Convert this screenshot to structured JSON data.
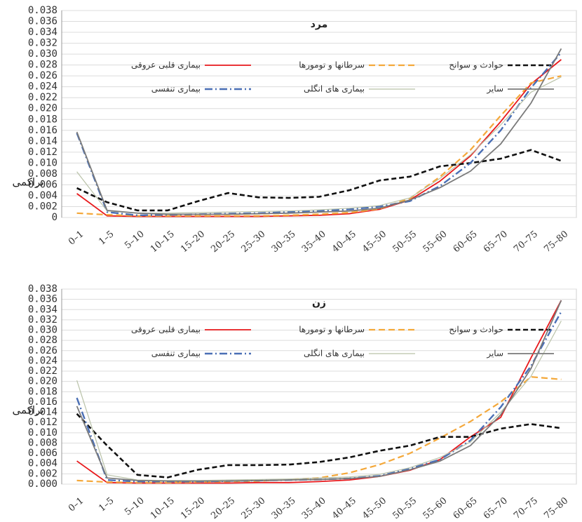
{
  "chart_data": [
    {
      "type": "line",
      "title": "مرد",
      "y_label": "تراکمی",
      "categories": [
        "0–1",
        "1–5",
        "5–10",
        "10–15",
        "15–20",
        "20–25",
        "25–30",
        "30–35",
        "35–40",
        "40–45",
        "45–50",
        "50–55",
        "55–60",
        "60–65",
        "65–70",
        "70–75",
        "75–80"
      ],
      "ylim": [
        0,
        0.038
      ],
      "yticks": [
        0,
        0.002,
        0.004,
        0.006,
        0.008,
        {
          "value": 0.01,
          "label": "0.010"
        },
        0.012,
        0.014,
        0.016,
        0.018,
        {
          "value": 0.02,
          "label": "0.020"
        },
        0.022,
        0.024,
        0.026,
        0.028,
        {
          "value": 0.03,
          "label": "0.030"
        },
        0.032,
        0.034,
        0.036,
        0.038
      ],
      "grid": true,
      "series": [
        {
          "name": "بیماری قلبی عروقی",
          "color": "#e8191c",
          "style": "solid",
          "values": [
            0.0044,
            0.0003,
            0.0002,
            0.0002,
            0.0002,
            0.0002,
            0.0002,
            0.0003,
            0.0004,
            0.0007,
            0.0015,
            0.0032,
            0.0067,
            0.0113,
            0.0176,
            0.0245,
            0.029
          ]
        },
        {
          "name": "سرطانها و تومورها",
          "color": "#f4a83a",
          "style": "dash",
          "values": [
            0.0008,
            0.0005,
            0.0003,
            0.0003,
            0.0003,
            0.0003,
            0.0003,
            0.0004,
            0.0006,
            0.0009,
            0.0016,
            0.0035,
            0.0075,
            0.0124,
            0.0187,
            0.0247,
            0.026
          ]
        },
        {
          "name": "حوادث و سوانح",
          "color": "#111111",
          "style": "bigdash",
          "values": [
            0.0054,
            0.0028,
            0.0013,
            0.0013,
            0.003,
            0.0045,
            0.0037,
            0.0036,
            0.0038,
            0.005,
            0.0068,
            0.0075,
            0.0094,
            0.01,
            0.0108,
            0.0124,
            0.0104
          ]
        },
        {
          "name": "بیماری تنفسی",
          "color": "#4a6fb5",
          "style": "dashdot",
          "values": [
            0.0155,
            0.001,
            0.0004,
            0.0005,
            0.0006,
            0.0007,
            0.0008,
            0.001,
            0.0012,
            0.0015,
            0.002,
            0.003,
            0.0058,
            0.01,
            0.016,
            0.0238,
            0.0303
          ]
        },
        {
          "name": "بیماری های انگلی",
          "color": "#b9c2a8",
          "style": "thin",
          "values": [
            0.0084,
            0.0012,
            0.0008,
            0.0008,
            0.0009,
            0.001,
            0.0011,
            0.0012,
            0.0014,
            0.0017,
            0.0022,
            0.0036,
            0.0072,
            0.0115,
            0.017,
            0.023,
            0.0258
          ]
        },
        {
          "name": "سایر",
          "color": "#7a7a7a",
          "style": "solid",
          "values": [
            0.0157,
            0.0013,
            0.0008,
            0.0006,
            0.0006,
            0.0006,
            0.0007,
            0.0008,
            0.001,
            0.0012,
            0.0017,
            0.0032,
            0.0055,
            0.0085,
            0.0135,
            0.021,
            0.031
          ]
        }
      ]
    },
    {
      "type": "line",
      "title": "زن",
      "y_label": "تراکمی",
      "categories": [
        "0–1",
        "1–5",
        "5–10",
        "10–15",
        "15–20",
        "20–25",
        "25–30",
        "30–35",
        "35–40",
        "40–45",
        "45–50",
        "50–55",
        "55–60",
        "60–65",
        "65–70",
        "70–75",
        "75–80"
      ],
      "ylim": [
        0,
        0.038
      ],
      "yticks": [
        {
          "value": 0,
          "label": "0.000"
        },
        0.002,
        0.004,
        0.006,
        0.008,
        {
          "value": 0.01,
          "label": "0.010"
        },
        0.012,
        0.014,
        0.016,
        0.018,
        {
          "value": 0.02,
          "label": "0.020"
        },
        0.022,
        0.024,
        0.026,
        0.028,
        {
          "value": 0.03,
          "label": "0.030"
        },
        0.032,
        0.034,
        0.036,
        0.038
      ],
      "grid": true,
      "series": [
        {
          "name": "بیماری قلبی عروقی",
          "color": "#e8191c",
          "style": "solid",
          "values": [
            0.0045,
            0.0003,
            0.0002,
            0.0002,
            0.0002,
            0.0002,
            0.0003,
            0.0003,
            0.0005,
            0.0008,
            0.0015,
            0.0027,
            0.0048,
            0.0092,
            0.013,
            0.0246,
            0.0358
          ]
        },
        {
          "name": "سرطانها و تومورها",
          "color": "#f4a83a",
          "style": "dash",
          "values": [
            0.0007,
            0.0004,
            0.0003,
            0.0003,
            0.0004,
            0.0005,
            0.0006,
            0.0009,
            0.0012,
            0.0022,
            0.0038,
            0.006,
            0.009,
            0.0122,
            0.016,
            0.0209,
            0.0204
          ]
        },
        {
          "name": "حوادث و سوانح",
          "color": "#111111",
          "style": "bigdash",
          "values": [
            0.0137,
            0.0075,
            0.0018,
            0.0013,
            0.0028,
            0.0037,
            0.0037,
            0.0038,
            0.0043,
            0.0052,
            0.0065,
            0.0075,
            0.0092,
            0.0092,
            0.0108,
            0.0117,
            0.0109
          ]
        },
        {
          "name": "بیماری تنفسی",
          "color": "#4a6fb5",
          "style": "dashdot",
          "values": [
            0.0168,
            0.0008,
            0.0005,
            0.0005,
            0.0005,
            0.0006,
            0.0007,
            0.0008,
            0.0009,
            0.0011,
            0.0016,
            0.003,
            0.0048,
            0.0085,
            0.015,
            0.023,
            0.0336
          ]
        },
        {
          "name": "بیماری های انگلی",
          "color": "#b9c2a8",
          "style": "thin",
          "values": [
            0.0202,
            0.0018,
            0.0008,
            0.0007,
            0.0007,
            0.0008,
            0.0009,
            0.001,
            0.0012,
            0.0014,
            0.0019,
            0.0032,
            0.0052,
            0.0082,
            0.014,
            0.021,
            0.0318
          ]
        },
        {
          "name": "سایر",
          "color": "#7a7a7a",
          "style": "solid",
          "values": [
            0.0152,
            0.0012,
            0.0007,
            0.0006,
            0.0006,
            0.0006,
            0.0007,
            0.0008,
            0.0009,
            0.0011,
            0.0015,
            0.0028,
            0.0045,
            0.0075,
            0.0135,
            0.0225,
            0.0358
          ]
        }
      ]
    }
  ]
}
